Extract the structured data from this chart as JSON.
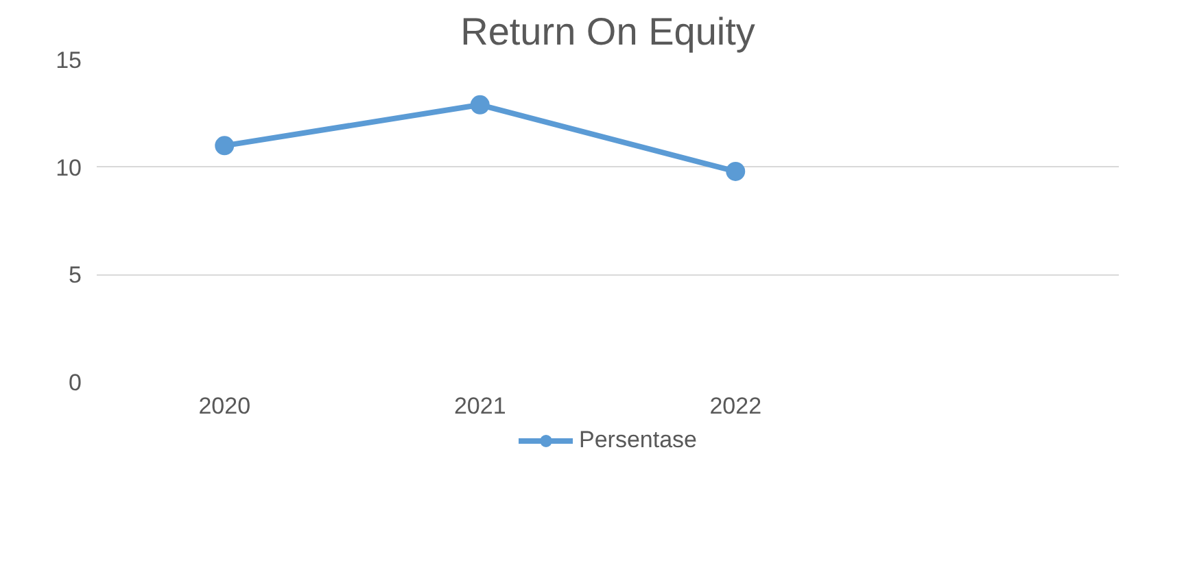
{
  "chart_data": {
    "type": "line",
    "title": "Return On Equity",
    "categories": [
      "2020",
      "2021",
      "2022",
      null
    ],
    "series": [
      {
        "name": "Persentase",
        "color": "#5b9bd5",
        "values": [
          11,
          12.9,
          9.8,
          null
        ]
      }
    ],
    "ylim": [
      0,
      15
    ],
    "yticks": [
      0,
      5,
      10,
      15
    ],
    "grid": "y",
    "legend": "bottom",
    "marker": "circle",
    "line_style": "solid"
  }
}
